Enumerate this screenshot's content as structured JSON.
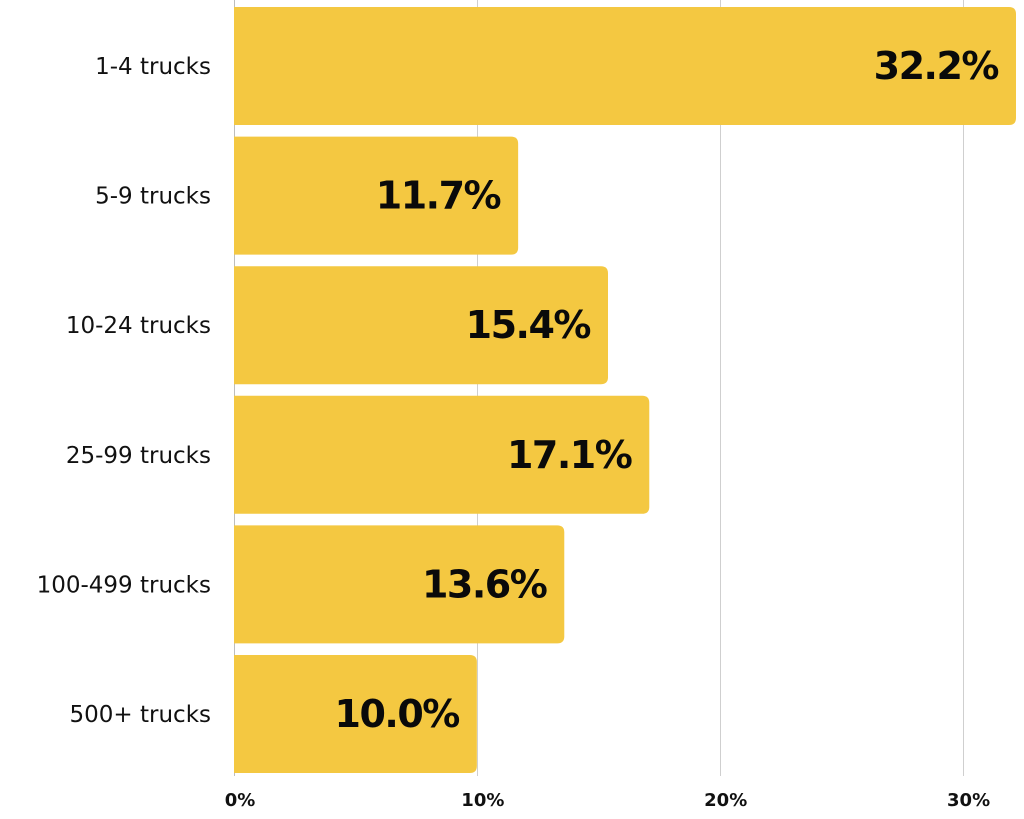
{
  "chart_data": {
    "type": "bar",
    "orientation": "horizontal",
    "categories": [
      "1-4 trucks",
      "5-9 trucks",
      "10-24 trucks",
      "25-99 trucks",
      "100-499 trucks",
      "500+ trucks"
    ],
    "values": [
      32.2,
      11.7,
      15.4,
      17.1,
      13.6,
      10.0
    ],
    "value_labels": [
      "32.2%",
      "11.7%",
      "15.4%",
      "17.1%",
      "13.6%",
      "10.0%"
    ],
    "x_ticks": [
      0,
      10,
      20,
      30
    ],
    "x_tick_labels": [
      "0%",
      "10%",
      "20%",
      "30%"
    ],
    "xlim": [
      0,
      32.2
    ],
    "title": "",
    "xlabel": "",
    "ylabel": "",
    "grid": true,
    "legend": "none",
    "colors": {
      "bar": "#F4C841",
      "grid": "#cfcfcf",
      "text": "#111111"
    }
  }
}
